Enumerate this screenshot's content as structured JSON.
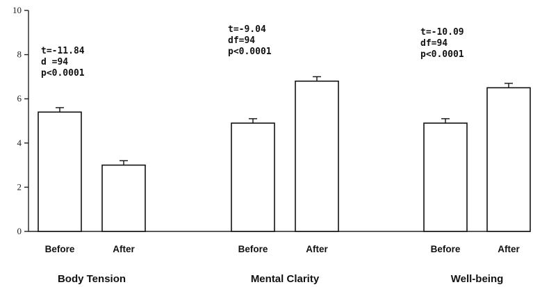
{
  "chart_data": {
    "type": "bar",
    "ylim": [
      0,
      10
    ],
    "yticks": [
      "0",
      "2",
      "4",
      "6",
      "8",
      "10"
    ],
    "grid": false,
    "groups": [
      {
        "name": "Body Tension",
        "stats": [
          "t=-11.84",
          "d =94",
          "p<0.0001"
        ],
        "bars": [
          {
            "label": "Before",
            "value": 5.4,
            "error": 0.2
          },
          {
            "label": "After",
            "value": 3.0,
            "error": 0.2
          }
        ]
      },
      {
        "name": "Mental Clarity",
        "stats": [
          "t=-9.04",
          "df=94",
          "p<0.0001"
        ],
        "bars": [
          {
            "label": "Before",
            "value": 4.9,
            "error": 0.2
          },
          {
            "label": "After",
            "value": 6.8,
            "error": 0.2
          }
        ]
      },
      {
        "name": "Well-being",
        "stats": [
          "t=-10.09",
          "df=94",
          "p<0.0001"
        ],
        "bars": [
          {
            "label": "Before",
            "value": 4.9,
            "error": 0.2
          },
          {
            "label": "After",
            "value": 6.5,
            "error": 0.2
          }
        ]
      }
    ]
  }
}
